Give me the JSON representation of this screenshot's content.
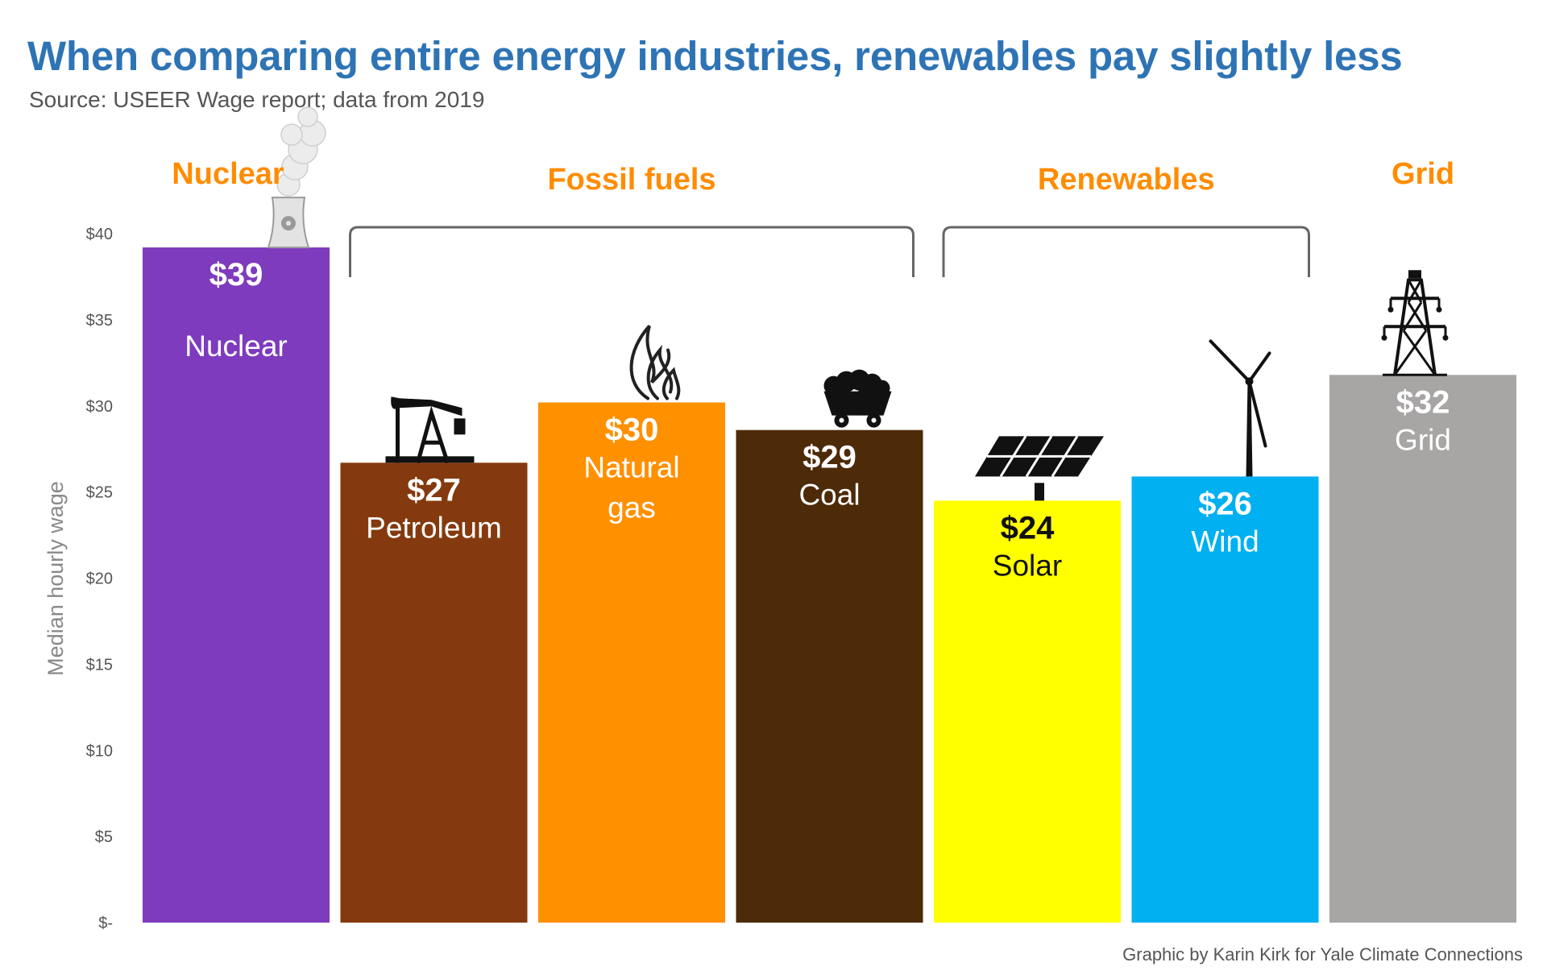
{
  "title": "When comparing entire energy industries, renewables pay slightly less",
  "subtitle": "Source: USEER Wage report; data from 2019",
  "credit": "Graphic by Karin Kirk for Yale Climate Connections",
  "chart_data": {
    "type": "bar",
    "title": "When comparing entire energy industries, renewables pay slightly less",
    "xlabel": "",
    "ylabel": "Median hourly wage",
    "ylim": [
      0,
      40
    ],
    "yticks": [
      {
        "value": 0,
        "label": "$-"
      },
      {
        "value": 5,
        "label": "$5"
      },
      {
        "value": 10,
        "label": "$10"
      },
      {
        "value": 15,
        "label": "$15"
      },
      {
        "value": 20,
        "label": "$20"
      },
      {
        "value": 25,
        "label": "$25"
      },
      {
        "value": 30,
        "label": "$30"
      },
      {
        "value": 35,
        "label": "$35"
      },
      {
        "value": 40,
        "label": "$40"
      }
    ],
    "categories": [
      "Nuclear",
      "Petroleum",
      "Natural gas",
      "Coal",
      "Solar",
      "Wind",
      "Grid"
    ],
    "values": [
      39.2,
      26.7,
      30.2,
      28.6,
      24.5,
      25.9,
      31.8
    ],
    "value_labels": [
      "$39",
      "$27",
      "$30",
      "$29",
      "$24",
      "$26",
      "$32"
    ],
    "name_lines": [
      [
        "Nuclear"
      ],
      [
        "Petroleum"
      ],
      [
        "Natural",
        "gas"
      ],
      [
        "Coal"
      ],
      [
        "Solar"
      ],
      [
        "Wind"
      ],
      [
        "Grid"
      ]
    ],
    "colors": [
      "#7e3bbd",
      "#843a0e",
      "#ff9000",
      "#4d2a08",
      "#ffff00",
      "#00b0f0",
      "#a8a5a5"
    ],
    "label_colors": [
      "#ffffff",
      "#ffffff",
      "#ffffff",
      "#ffffff",
      "#111111",
      "#ffffff",
      "#ffffff"
    ],
    "icons": [
      "cooling-tower-icon",
      "oil-pumpjack-icon",
      "gas-flame-icon",
      "coal-cart-icon",
      "solar-panel-icon",
      "wind-turbine-icon",
      "transmission-tower-icon"
    ],
    "groups": [
      {
        "label": "Nuclear",
        "from": 0,
        "to": 0,
        "bracket": false
      },
      {
        "label": "Fossil fuels",
        "from": 1,
        "to": 3,
        "bracket": true
      },
      {
        "label": "Renewables",
        "from": 4,
        "to": 5,
        "bracket": true
      },
      {
        "label": "Grid",
        "from": 6,
        "to": 6,
        "bracket": false
      }
    ],
    "grid": false,
    "legend": "none"
  }
}
